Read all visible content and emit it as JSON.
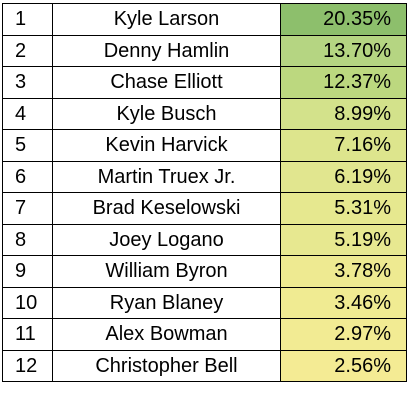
{
  "table": {
    "rows": [
      {
        "rank": "1",
        "driver": "Kyle Larson",
        "percent": "20.35%",
        "color": "#8dbf6c"
      },
      {
        "rank": "2",
        "driver": "Denny Hamlin",
        "percent": "13.70%",
        "color": "#b5d582"
      },
      {
        "rank": "3",
        "driver": "Chase Elliott",
        "percent": "12.37%",
        "color": "#bcd87f"
      },
      {
        "rank": "4",
        "driver": "Kyle Busch",
        "percent": "8.99%",
        "color": "#d3e28b"
      },
      {
        "rank": "5",
        "driver": "Kevin Harvick",
        "percent": "7.16%",
        "color": "#dde58d"
      },
      {
        "rank": "6",
        "driver": "Martin Truex Jr.",
        "percent": "6.19%",
        "color": "#e1e68f"
      },
      {
        "rank": "7",
        "driver": "Brad Keselowski",
        "percent": "5.31%",
        "color": "#e6e88f"
      },
      {
        "rank": "8",
        "driver": "Joey Logano",
        "percent": "5.19%",
        "color": "#e7e890"
      },
      {
        "rank": "9",
        "driver": "William Byron",
        "percent": "3.78%",
        "color": "#eeea91"
      },
      {
        "rank": "10",
        "driver": "Ryan Blaney",
        "percent": "3.46%",
        "color": "#f0eb92"
      },
      {
        "rank": "11",
        "driver": "Alex Bowman",
        "percent": "2.97%",
        "color": "#f2eb93"
      },
      {
        "rank": "12",
        "driver": "Christopher Bell",
        "percent": "2.56%",
        "color": "#f4eb94"
      }
    ]
  }
}
